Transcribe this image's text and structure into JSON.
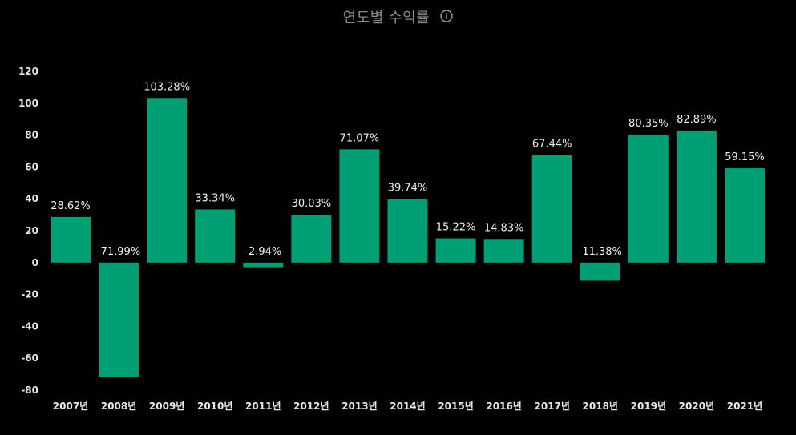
{
  "header": {
    "title": "연도별 수익률",
    "info_icon": "info-circle-icon"
  },
  "chart_data": {
    "type": "bar",
    "title": "연도별 수익률",
    "categories": [
      "2007년",
      "2008년",
      "2009년",
      "2010년",
      "2011년",
      "2012년",
      "2013년",
      "2014년",
      "2015년",
      "2016년",
      "2017년",
      "2018년",
      "2019년",
      "2020년",
      "2021년"
    ],
    "values": [
      28.62,
      -71.99,
      103.28,
      33.34,
      -2.94,
      30.03,
      71.07,
      39.74,
      15.22,
      14.83,
      67.44,
      -11.38,
      80.35,
      82.89,
      59.15
    ],
    "data_labels": [
      "28.62%",
      "-71.99%",
      "103.28%",
      "33.34%",
      "-2.94%",
      "30.03%",
      "71.07%",
      "39.74%",
      "15.22%",
      "14.83%",
      "67.44%",
      "-11.38%",
      "80.35%",
      "82.89%",
      "59.15%"
    ],
    "yticks": [
      120,
      100,
      80,
      60,
      40,
      20,
      0,
      -20,
      -40,
      -60,
      -80
    ],
    "ylim": [
      -80,
      120
    ],
    "xlabel": "",
    "ylabel": "",
    "bar_color": "#00a074",
    "background": "#000000",
    "grid": false,
    "legend": "none"
  }
}
